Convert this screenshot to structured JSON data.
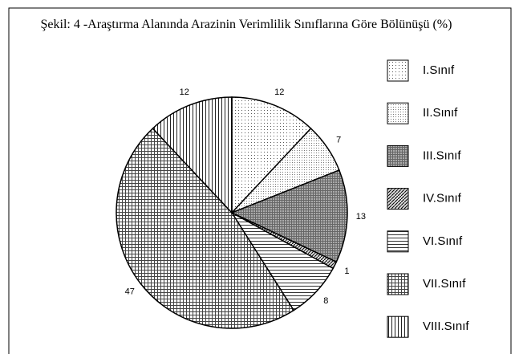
{
  "chart_data": {
    "type": "pie",
    "title": "Şekil: 4 -Araştırma Alanında Arazinin Verimlilik Sınıflarına Göre Bölünüşü (%)",
    "categories": [
      "I.Sınıf",
      "II.Sınıf",
      "III.Sınıf",
      "IV.Sınıf",
      "VI.Sınıf",
      "VII.Sınıf",
      "VIII.Sınıf"
    ],
    "values": [
      12,
      7,
      13,
      1,
      8,
      47,
      12
    ]
  }
}
